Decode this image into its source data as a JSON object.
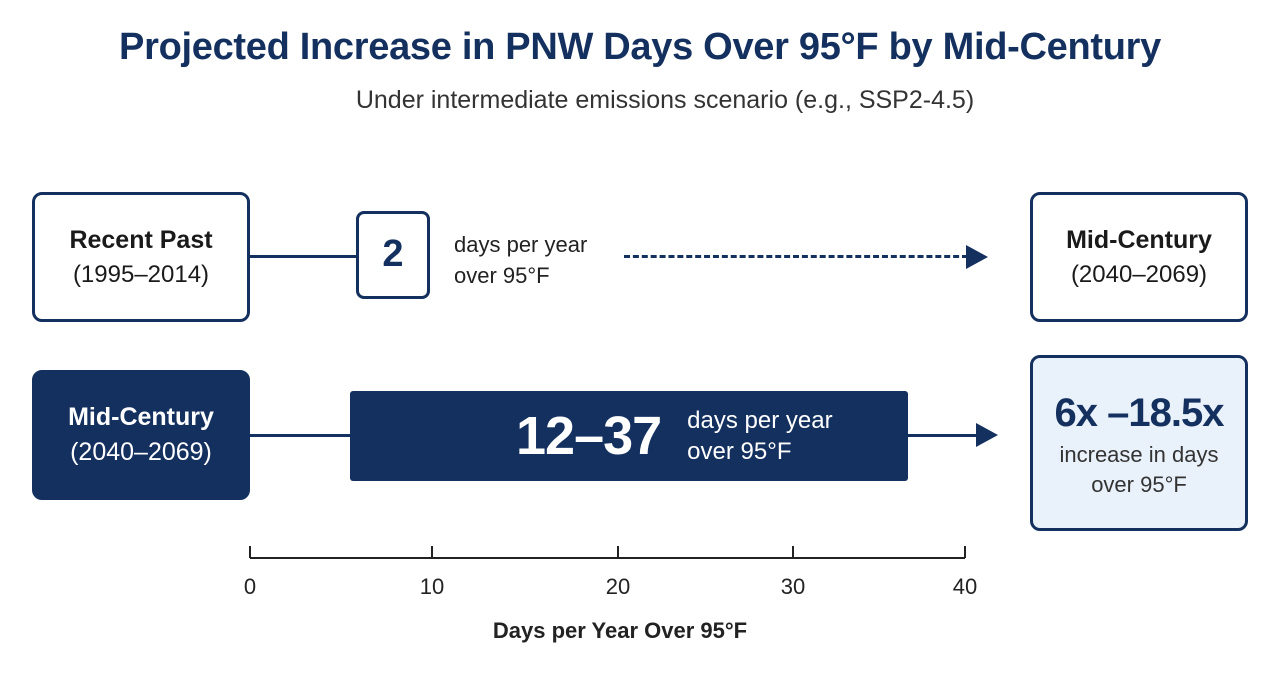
{
  "title": "Projected Increase in PNW Days Over 95°F by Mid-Century",
  "subtitle": "Under intermediate emissions scenario (e.g., SSP2-4.5)",
  "row1": {
    "left_box": {
      "line1": "Recent Past",
      "line2": "(1995–2014)"
    },
    "value": "2",
    "value_desc_line1": "days per year",
    "value_desc_line2": "over 95°F",
    "right_box": {
      "line1": "Mid-Century",
      "line2": "(2040–2069)"
    }
  },
  "row2": {
    "left_box": {
      "line1": "Mid-Century",
      "line2": "(2040–2069)"
    },
    "value": "12–37",
    "value_desc_line1": "days per year",
    "value_desc_line2": "over 95°F",
    "result_box": {
      "line1": "6x –18.5x",
      "line2": "increase in days",
      "line3": "over 95°F"
    }
  },
  "colors": {
    "navy": "#14305f",
    "light_fill": "#e9f1fa"
  },
  "chart_data": {
    "type": "bar",
    "xlabel": "Days per Year Over 95°F",
    "xlim": [
      0,
      40
    ],
    "xticks": [
      0,
      10,
      20,
      30,
      40
    ],
    "series": [
      {
        "category": "Recent Past (1995–2014)",
        "value": 2
      },
      {
        "category": "Mid-Century (2040–2069)",
        "range": [
          12,
          37
        ]
      }
    ],
    "grid": false
  }
}
